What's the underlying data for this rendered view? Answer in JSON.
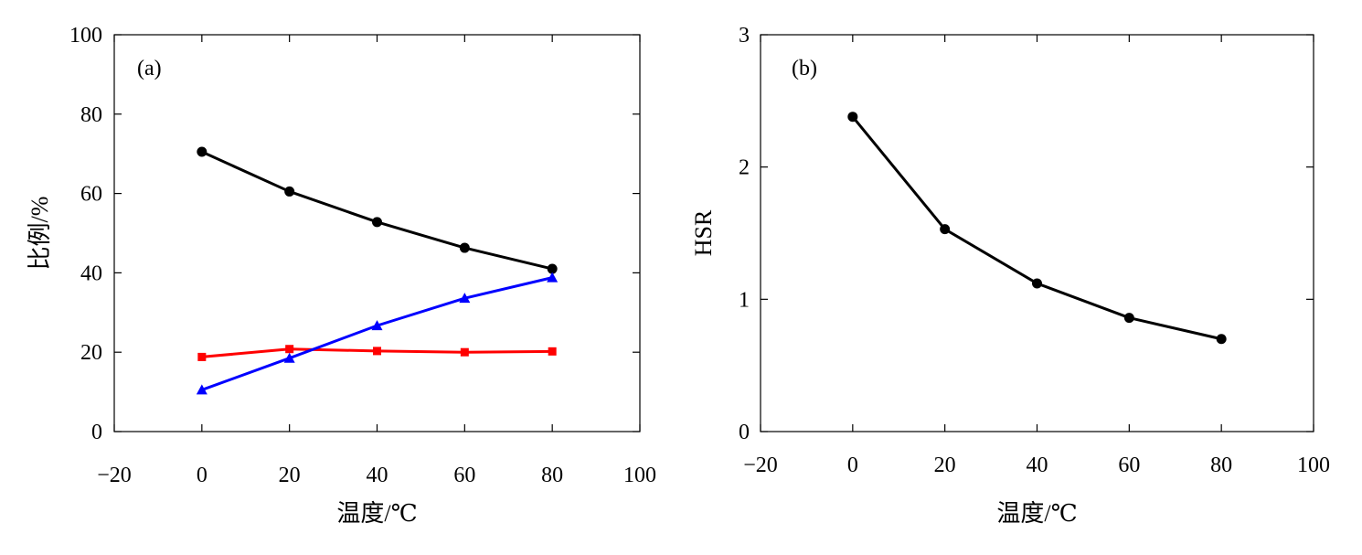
{
  "chart_data": [
    {
      "type": "line",
      "panel_label": "(a)",
      "xlabel": "温度/℃",
      "ylabel": "比例/%",
      "xlim": [
        -20,
        100
      ],
      "ylim": [
        0,
        100
      ],
      "xticks": [
        -20,
        0,
        20,
        40,
        60,
        80,
        100
      ],
      "xtick_labels": [
        "−20",
        "0",
        "20",
        "40",
        "60",
        "80",
        "100"
      ],
      "yticks": [
        0,
        20,
        40,
        60,
        80,
        100
      ],
      "ytick_labels": [
        "0",
        "20",
        "40",
        "60",
        "80",
        "100"
      ],
      "grid": false,
      "legend": "none",
      "x": [
        0,
        20,
        40,
        60,
        80
      ],
      "series": [
        {
          "values": [
            70.5,
            60.5,
            52.8,
            46.3,
            41.0
          ],
          "color": "#000000",
          "marker": "circle"
        },
        {
          "values": [
            18.8,
            20.8,
            20.3,
            20.0,
            20.2
          ],
          "color": "#ff0000",
          "marker": "square"
        },
        {
          "values": [
            10.5,
            18.5,
            26.7,
            33.6,
            38.8
          ],
          "color": "#0000ff",
          "marker": "triangle"
        }
      ]
    },
    {
      "type": "line",
      "panel_label": "(b)",
      "xlabel": "温度/℃",
      "ylabel": "HSR",
      "xlim": [
        -20,
        100
      ],
      "ylim": [
        0,
        3
      ],
      "xticks": [
        -20,
        0,
        20,
        40,
        60,
        80,
        100
      ],
      "xtick_labels": [
        "−20",
        "0",
        "20",
        "40",
        "60",
        "80",
        "100"
      ],
      "yticks": [
        0,
        1,
        2,
        3
      ],
      "ytick_labels": [
        "0",
        "1",
        "2",
        "3"
      ],
      "grid": false,
      "legend": "none",
      "x": [
        0,
        20,
        40,
        60,
        80
      ],
      "series": [
        {
          "values": [
            2.38,
            1.53,
            1.12,
            0.86,
            0.7
          ],
          "color": "#000000",
          "marker": "circle"
        }
      ]
    }
  ]
}
